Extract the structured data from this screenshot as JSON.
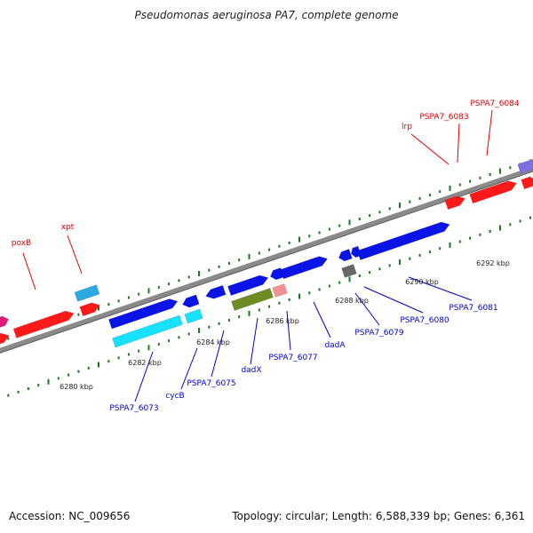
{
  "map": {
    "title": "Pseudomonas aeruginosa PA7, complete genome",
    "accession": "Accession: NC_009656",
    "summary": "Topology: circular; Length: 6,588,339 bp; Genes: 6,361"
  },
  "scale_labels": [
    "6280 kbp",
    "6282 kbp",
    "6284 kbp",
    "6286 kbp",
    "6288 kbp",
    "6290 kbp",
    "6292 kbp"
  ],
  "gene_labels_top": [
    "poxB",
    "xpt",
    "lrp",
    "PSPA7_6083",
    "PSPA7_6084"
  ],
  "gene_labels_bottom": [
    "PSPA7_6073",
    "cycB",
    "PSPA7_6075",
    "dadX",
    "PSPA7_6077",
    "dadA",
    "PSPA7_6079",
    "PSPA7_6080",
    "PSPA7_6081"
  ],
  "colors": {
    "top_label": "#e00000",
    "bottom_label": "#0000cc",
    "red_gene": "#ff1a1a",
    "blue_gene": "#0a14e6",
    "cyan_gene": "#18e0ff",
    "light_blue_gene": "#2aa8e0",
    "olive_gene": "#6e8c23",
    "pink_gene": "#f59090",
    "gray_gene": "#666666",
    "purple_gene": "#7a6ee0",
    "magenta_gene": "#e0197a",
    "tick": "#1a7a1a",
    "backbone": "#8a8a8a"
  }
}
